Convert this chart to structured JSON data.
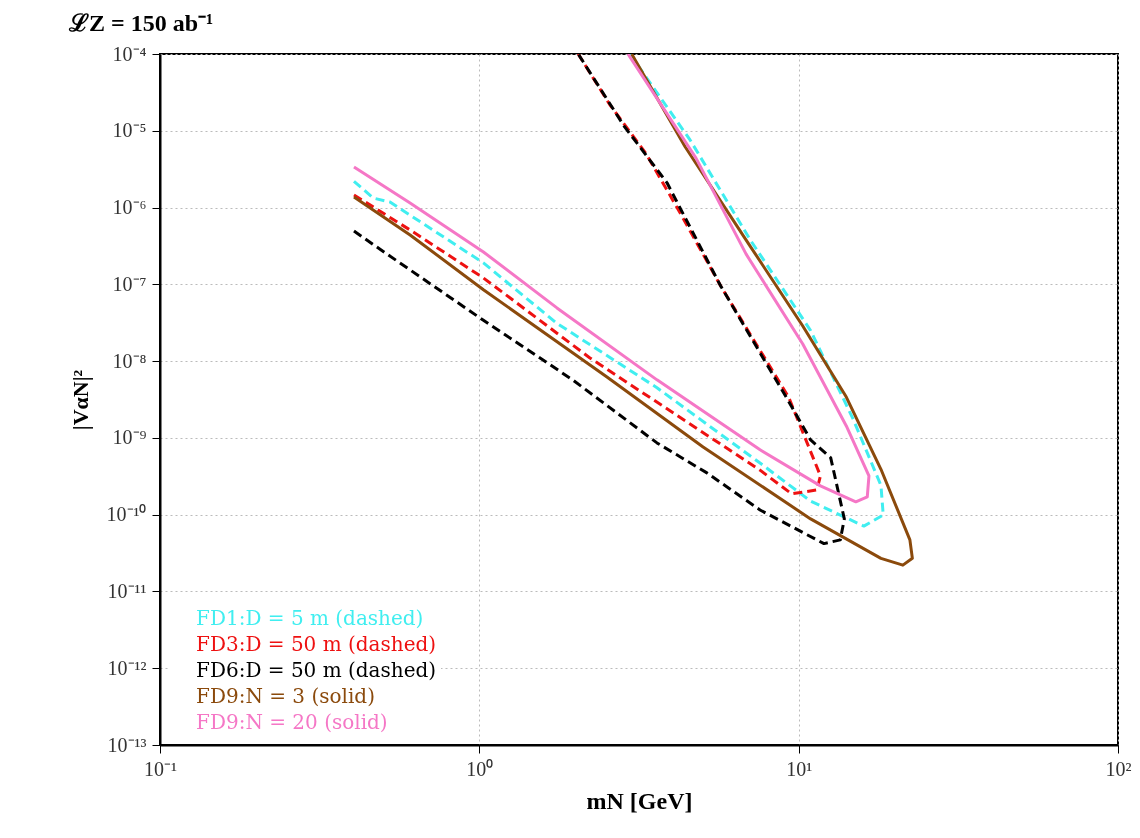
{
  "chart_data": {
    "type": "line",
    "title": "ℒZ = 150 ab⁻¹",
    "xlabel": "mN [GeV]",
    "ylabel": "|VαN|²",
    "log": "xy",
    "grid": true,
    "legend": "bottom left",
    "xlim": [
      0.1,
      100
    ],
    "ylim": [
      1e-13,
      0.0001
    ],
    "xticks": [
      {
        "value": 0.1,
        "label": "10⁻¹"
      },
      {
        "value": 1,
        "label": "10⁰"
      },
      {
        "value": 10,
        "label": "10¹"
      },
      {
        "value": 100,
        "label": "10²"
      }
    ],
    "yticks": [
      {
        "value": 1e-13,
        "label": "10⁻¹³"
      },
      {
        "value": 1e-12,
        "label": "10⁻¹²"
      },
      {
        "value": 1e-11,
        "label": "10⁻¹¹"
      },
      {
        "value": 1e-10,
        "label": "10⁻¹⁰"
      },
      {
        "value": 1e-09,
        "label": "10⁻⁹"
      },
      {
        "value": 1e-08,
        "label": "10⁻⁸"
      },
      {
        "value": 1e-07,
        "label": "10⁻⁷"
      },
      {
        "value": 1e-06,
        "label": "10⁻⁶"
      },
      {
        "value": 1e-05,
        "label": "10⁻⁵"
      },
      {
        "value": 0.0001,
        "label": "10⁻⁴"
      }
    ],
    "series": [
      {
        "name": "FD1:D = 5 m (dashed)",
        "color": "#40eef0",
        "line_style": "dashed",
        "x": [
          0.405,
          0.465,
          0.525,
          1.03,
          1.75,
          3.6,
          7.57,
          10.9,
          16.0,
          18.4,
          18.1,
          14.8,
          10.9,
          7.05,
          4.57,
          2.96
        ],
        "values": [
          2.2e-06,
          1.33e-06,
          1.18e-06,
          1.9e-07,
          3.1e-08,
          4.5e-09,
          4.7e-10,
          1.5e-10,
          7.1e-11,
          9.9e-11,
          2.4e-10,
          1.77e-09,
          2.5e-08,
          3.8e-07,
          7.6e-06,
          0.0001
        ]
      },
      {
        "name": "FD3:D = 50 m (dashed)",
        "color": "#ee1111",
        "line_style": "dashed",
        "x": [
          0.405,
          0.607,
          1.03,
          2.22,
          7.57,
          9.5,
          11.4,
          11.7,
          9.3,
          5.7,
          4.29,
          3.33,
          2.56,
          2.04
        ],
        "values": [
          1.46e-06,
          5.1e-07,
          1.21e-07,
          1.1e-08,
          3.8e-10,
          1.87e-10,
          2.1e-10,
          3.2e-10,
          3.4e-09,
          9.5e-08,
          8e-07,
          5e-06,
          2.2e-05,
          0.0001
        ]
      },
      {
        "name": "FD6:D = 50 m (dashed)",
        "color": "#000000",
        "line_style": "dashed",
        "x": [
          0.405,
          0.465,
          1.03,
          1.96,
          3.6,
          5.16,
          7.57,
          12.0,
          13.5,
          13.9,
          12.6,
          10.9,
          9.3,
          5.7,
          3.87,
          2.84,
          2.04
        ],
        "values": [
          4.95e-07,
          3.3e-07,
          3.4e-08,
          5.7e-09,
          8.6e-10,
          3.5e-10,
          1.15e-10,
          4.2e-11,
          4.7e-11,
          8.8e-11,
          5.5e-10,
          9.4e-10,
          3e-09,
          9.5e-08,
          2.1e-06,
          1.15e-05,
          0.0001
        ]
      },
      {
        "name": "FD9:N = 3 (solid)",
        "color": "#8b4a0c",
        "line_style": "solid",
        "x": [
          0.405,
          0.607,
          1.03,
          2.51,
          5.02,
          10.9,
          18.1,
          21.2,
          22.7,
          22.3,
          18.1,
          14.1,
          10.3,
          6.84,
          4.41,
          3.0
        ],
        "values": [
          1.37e-06,
          4.4e-07,
          8.5e-08,
          6.2e-09,
          7.6e-10,
          8.8e-11,
          2.7e-11,
          2.2e-11,
          2.7e-11,
          4.7e-11,
          3.9e-10,
          3.4e-09,
          2.87e-08,
          3.8e-07,
          6.2e-06,
          0.0001
        ]
      },
      {
        "name": "FD9:N = 20 (solid)",
        "color": "#f577c6",
        "line_style": "solid",
        "x": [
          0.405,
          0.607,
          1.03,
          1.75,
          3.6,
          7.57,
          11.7,
          15.1,
          16.4,
          16.6,
          14.1,
          10.3,
          6.84,
          4.77,
          2.92
        ],
        "values": [
          3.38e-06,
          1.15e-06,
          2.64e-07,
          4.93e-08,
          5.7e-09,
          7e-10,
          2.37e-10,
          1.47e-10,
          1.7e-10,
          3.2e-10,
          1.43e-09,
          1.67e-08,
          2.49e-07,
          4.4e-06,
          0.0001
        ]
      }
    ]
  }
}
